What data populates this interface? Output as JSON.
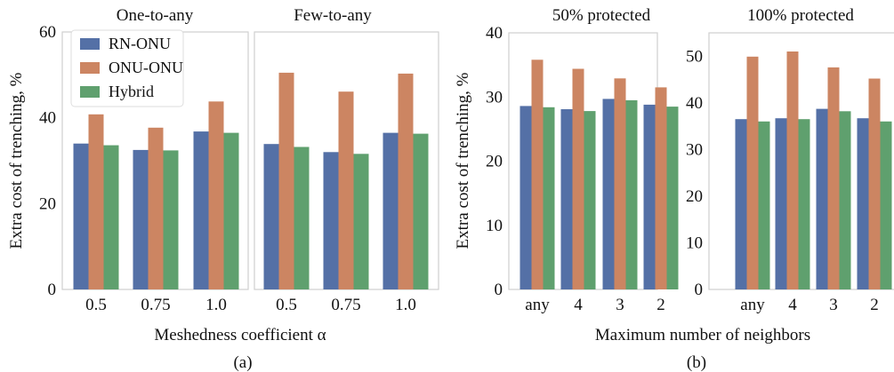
{
  "colors": {
    "RN-ONU": "#5470a6",
    "ONU-ONU": "#cc8562",
    "Hybrid": "#5fa06e",
    "frame": "#cfcfcf",
    "text": "#111111"
  },
  "figure": {
    "legend": [
      "RN-ONU",
      "ONU-ONU",
      "Hybrid"
    ],
    "group_a": {
      "caption": "(a)",
      "xlabel": "Meshedness coefficient α",
      "ylabel": "Extra cost of trenching, %"
    },
    "group_b": {
      "caption": "(b)",
      "xlabel": "Maximum number of neighbors",
      "ylabel": "Extra cost of trenching, %"
    }
  },
  "chart_data": [
    {
      "type": "bar",
      "title": "One-to-any",
      "categories": [
        "0.5",
        "0.75",
        "1.0"
      ],
      "ylim": [
        0,
        60
      ],
      "yticks": [
        0,
        20,
        40,
        60
      ],
      "legend_position": "top-left",
      "series": [
        {
          "name": "RN-ONU",
          "values": [
            34,
            32.5,
            36.8
          ]
        },
        {
          "name": "ONU-ONU",
          "values": [
            40.8,
            37.7,
            43.8
          ]
        },
        {
          "name": "Hybrid",
          "values": [
            33.6,
            32.4,
            36.5
          ]
        }
      ]
    },
    {
      "type": "bar",
      "title": "Few-to-any",
      "categories": [
        "0.5",
        "0.75",
        "1.0"
      ],
      "ylim": [
        0,
        60
      ],
      "series": [
        {
          "name": "RN-ONU",
          "values": [
            33.9,
            32,
            36.5
          ]
        },
        {
          "name": "ONU-ONU",
          "values": [
            50.5,
            46.1,
            50.3
          ]
        },
        {
          "name": "Hybrid",
          "values": [
            33.2,
            31.6,
            36.3
          ]
        }
      ]
    },
    {
      "type": "bar",
      "title": "50% protected",
      "categories": [
        "any",
        "4",
        "3",
        "2"
      ],
      "ylim": [
        0,
        40
      ],
      "yticks": [
        0,
        10,
        20,
        30,
        40
      ],
      "series": [
        {
          "name": "RN-ONU",
          "values": [
            28.6,
            28.1,
            29.7,
            28.8
          ]
        },
        {
          "name": "ONU-ONU",
          "values": [
            35.8,
            34.4,
            32.9,
            31.5
          ]
        },
        {
          "name": "Hybrid",
          "values": [
            28.4,
            27.8,
            29.5,
            28.5
          ]
        }
      ]
    },
    {
      "type": "bar",
      "title": "100% protected",
      "categories": [
        "any",
        "4",
        "3",
        "2"
      ],
      "ylim": [
        0,
        55
      ],
      "yticks": [
        0,
        10,
        20,
        30,
        40,
        50
      ],
      "series": [
        {
          "name": "RN-ONU",
          "values": [
            36.5,
            36.7,
            38.7,
            36.7
          ]
        },
        {
          "name": "ONU-ONU",
          "values": [
            49.9,
            51.0,
            47.6,
            45.2
          ]
        },
        {
          "name": "Hybrid",
          "values": [
            36,
            36.5,
            38.2,
            36
          ]
        }
      ]
    }
  ]
}
